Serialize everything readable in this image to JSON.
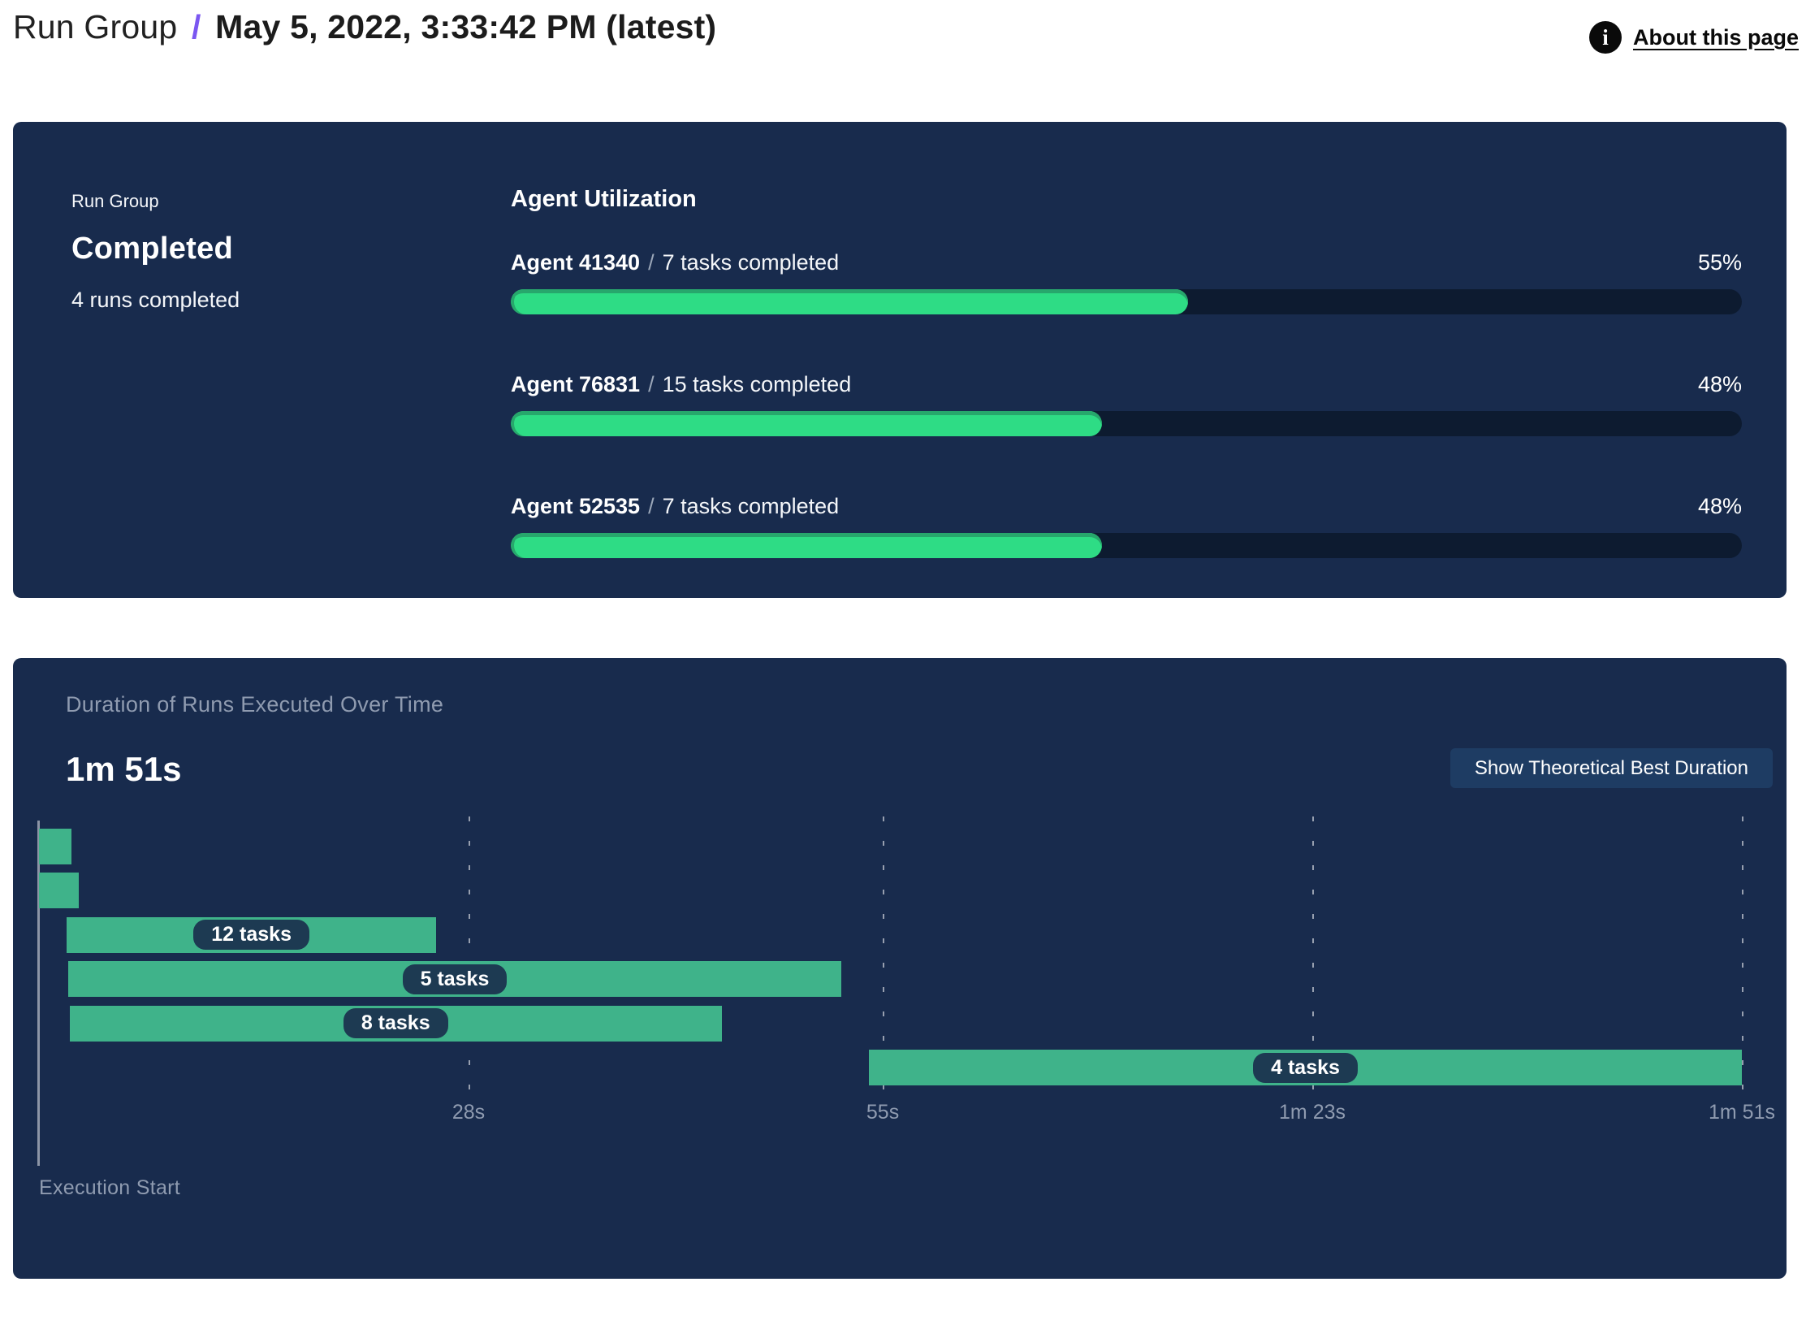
{
  "header": {
    "breadcrumb": "Run Group",
    "separator": "/",
    "title": "May 5, 2022, 3:33:42 PM (latest)",
    "about": {
      "label": "About this page",
      "icon": "info-icon",
      "icon_glyph": "i"
    }
  },
  "summary_card": {
    "label": "Run Group",
    "status": "Completed",
    "runs_completed": "4 runs completed",
    "utilization": {
      "title": "Agent Utilization",
      "agents": [
        {
          "name": "Agent 41340",
          "separator": "/",
          "tasks": "7 tasks completed",
          "percent": 55,
          "percent_label": "55%"
        },
        {
          "name": "Agent 76831",
          "separator": "/",
          "tasks": "15 tasks completed",
          "percent": 48,
          "percent_label": "48%"
        },
        {
          "name": "Agent 52535",
          "separator": "/",
          "tasks": "7 tasks completed",
          "percent": 48,
          "percent_label": "48%"
        }
      ]
    }
  },
  "duration_card": {
    "subtitle": "Duration of Runs Executed Over Time",
    "total_duration": "1m 51s",
    "button_label": "Show Theoretical Best Duration",
    "x_axis_label": "Execution Start"
  },
  "chart_data": [
    {
      "type": "bar",
      "title": "Agent Utilization",
      "categories": [
        "Agent 41340",
        "Agent 76831",
        "Agent 52535"
      ],
      "values": [
        55,
        48,
        48
      ],
      "value_unit": "%",
      "annotations": [
        "7 tasks completed",
        "15 tasks completed",
        "7 tasks completed"
      ],
      "xlim": [
        0,
        100
      ],
      "orientation": "horizontal"
    },
    {
      "type": "bar",
      "title": "Duration of Runs Executed Over Time",
      "orientation": "horizontal-timeline",
      "total_duration": "1m 51s",
      "xlabel": "Execution Start",
      "xlim_seconds": [
        0,
        111
      ],
      "grid": "dashed-vertical",
      "x_ticks": [
        {
          "seconds": 28,
          "label": "28s"
        },
        {
          "seconds": 55,
          "label": "55s"
        },
        {
          "seconds": 83,
          "label": "1m 23s"
        },
        {
          "seconds": 111,
          "label": "1m 51s"
        }
      ],
      "bars": [
        {
          "row": 0,
          "start_s": 0.0,
          "end_s": 2.1,
          "label": ""
        },
        {
          "row": 1,
          "start_s": 0.0,
          "end_s": 2.6,
          "label": ""
        },
        {
          "row": 2,
          "start_s": 1.8,
          "end_s": 25.9,
          "label": "12 tasks"
        },
        {
          "row": 3,
          "start_s": 1.9,
          "end_s": 52.3,
          "label": "5 tasks"
        },
        {
          "row": 4,
          "start_s": 2.0,
          "end_s": 44.5,
          "label": "8 tasks"
        },
        {
          "row": 5,
          "start_s": 54.1,
          "end_s": 111.0,
          "label": "4 tasks"
        }
      ]
    }
  ],
  "colors": {
    "card_bg": "#182b4d",
    "track": "#0d1b30",
    "progress_green": "#2edc85",
    "progress_green_edge": "#27a76c",
    "gantt_green": "#3fb38a",
    "pill_bg": "#1d3a52",
    "button_bg": "#1e3c63",
    "accent_purple": "#7b57f1",
    "muted_text": "#8f9bb0"
  }
}
